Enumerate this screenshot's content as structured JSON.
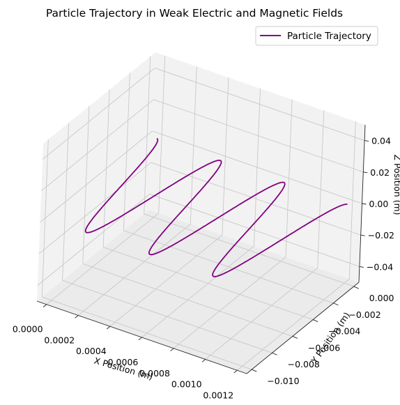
{
  "chart_data": {
    "type": "line",
    "projection": "3d",
    "title": "Particle Trajectory in Weak Electric and Magnetic Fields",
    "xlabel": "X Position (m)",
    "ylabel": "Y Position (m)",
    "zlabel": "Z Position (m)",
    "xlim": [
      -6e-05,
      0.00126
    ],
    "ylim": [
      -0.0105,
      0.0005
    ],
    "zlim": [
      -0.05,
      0.05
    ],
    "xticks": [
      "0.0000",
      "0.0002",
      "0.0004",
      "0.0006",
      "0.0008",
      "0.0010",
      "0.0012"
    ],
    "yticks": [
      "−0.010",
      "−0.008",
      "−0.006",
      "−0.004",
      "−0.002",
      "0.000"
    ],
    "zticks": [
      "−0.04",
      "−0.02",
      "0.00",
      "0.02",
      "0.04"
    ],
    "xtick_values": [
      0,
      0.0002,
      0.0004,
      0.0006,
      0.0008,
      0.001,
      0.0012
    ],
    "ytick_values": [
      -0.01,
      -0.008,
      -0.006,
      -0.004,
      -0.002,
      0
    ],
    "ztick_values": [
      -0.04,
      -0.02,
      0,
      0.02,
      0.04
    ],
    "grid": true,
    "legend": "top-right",
    "series": [
      {
        "name": "Particle Trajectory",
        "color": "#800080",
        "turns": 3,
        "x_range": [
          0,
          0.0012
        ],
        "y_center": -0.005,
        "y_amplitude": 0.005,
        "z_value": 0
      }
    ]
  }
}
